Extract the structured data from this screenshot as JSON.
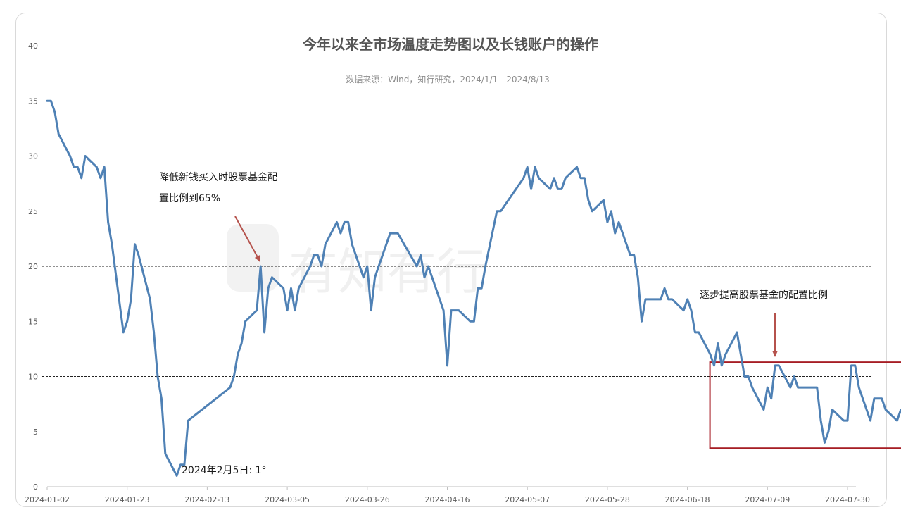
{
  "chart_data": {
    "type": "line",
    "title": "今年以来全市场温度走势图以及长钱账户的操作",
    "subtitle": "数据来源：Wind，知行研究，2024/1/1—2024/8/13",
    "watermark": "有知有行",
    "xlabel": "",
    "ylabel": "",
    "ylim": [
      0,
      40
    ],
    "yticks": [
      0,
      5,
      10,
      15,
      20,
      25,
      30,
      35,
      40
    ],
    "xticks": [
      "2024-01-02",
      "2024-01-23",
      "2024-02-13",
      "2024-03-05",
      "2024-03-26",
      "2024-04-16",
      "2024-05-07",
      "2024-05-28",
      "2024-06-18",
      "2024-07-09",
      "2024-07-30"
    ],
    "reference_lines": [
      10,
      20,
      30
    ],
    "grid": false,
    "line_color": "#4f81b5",
    "series": [
      {
        "points": [
          [
            "2024-01-02",
            35
          ],
          [
            "2024-01-03",
            35
          ],
          [
            "2024-01-04",
            34
          ],
          [
            "2024-01-05",
            32
          ],
          [
            "2024-01-08",
            30
          ],
          [
            "2024-01-09",
            29
          ],
          [
            "2024-01-10",
            29
          ],
          [
            "2024-01-11",
            28
          ],
          [
            "2024-01-12",
            30
          ],
          [
            "2024-01-15",
            29
          ],
          [
            "2024-01-16",
            28
          ],
          [
            "2024-01-17",
            29
          ],
          [
            "2024-01-18",
            24
          ],
          [
            "2024-01-19",
            22
          ],
          [
            "2024-01-22",
            14
          ],
          [
            "2024-01-23",
            15
          ],
          [
            "2024-01-24",
            17
          ],
          [
            "2024-01-25",
            22
          ],
          [
            "2024-01-26",
            21
          ],
          [
            "2024-01-29",
            17
          ],
          [
            "2024-01-30",
            14
          ],
          [
            "2024-01-31",
            10
          ],
          [
            "2024-02-01",
            8
          ],
          [
            "2024-02-02",
            3
          ],
          [
            "2024-02-05",
            1
          ],
          [
            "2024-02-06",
            2
          ],
          [
            "2024-02-07",
            2
          ],
          [
            "2024-02-08",
            6
          ],
          [
            "2024-02-19",
            9
          ],
          [
            "2024-02-20",
            10
          ],
          [
            "2024-02-21",
            12
          ],
          [
            "2024-02-22",
            13
          ],
          [
            "2024-02-23",
            15
          ],
          [
            "2024-02-26",
            16
          ],
          [
            "2024-02-27",
            20
          ],
          [
            "2024-02-28",
            14
          ],
          [
            "2024-02-29",
            18
          ],
          [
            "2024-03-01",
            19
          ],
          [
            "2024-03-04",
            18
          ],
          [
            "2024-03-05",
            16
          ],
          [
            "2024-03-06",
            18
          ],
          [
            "2024-03-07",
            16
          ],
          [
            "2024-03-08",
            18
          ],
          [
            "2024-03-11",
            20
          ],
          [
            "2024-03-12",
            21
          ],
          [
            "2024-03-13",
            21
          ],
          [
            "2024-03-14",
            20
          ],
          [
            "2024-03-15",
            22
          ],
          [
            "2024-03-18",
            24
          ],
          [
            "2024-03-19",
            23
          ],
          [
            "2024-03-20",
            24
          ],
          [
            "2024-03-21",
            24
          ],
          [
            "2024-03-22",
            22
          ],
          [
            "2024-03-25",
            19
          ],
          [
            "2024-03-26",
            20
          ],
          [
            "2024-03-27",
            16
          ],
          [
            "2024-03-28",
            19
          ],
          [
            "2024-03-29",
            20
          ],
          [
            "2024-04-01",
            23
          ],
          [
            "2024-04-02",
            23
          ],
          [
            "2024-04-03",
            23
          ],
          [
            "2024-04-08",
            20
          ],
          [
            "2024-04-09",
            21
          ],
          [
            "2024-04-10",
            19
          ],
          [
            "2024-04-11",
            20
          ],
          [
            "2024-04-15",
            16
          ],
          [
            "2024-04-16",
            11
          ],
          [
            "2024-04-17",
            16
          ],
          [
            "2024-04-18",
            16
          ],
          [
            "2024-04-19",
            16
          ],
          [
            "2024-04-22",
            15
          ],
          [
            "2024-04-23",
            15
          ],
          [
            "2024-04-24",
            18
          ],
          [
            "2024-04-25",
            18
          ],
          [
            "2024-04-26",
            20
          ],
          [
            "2024-04-29",
            25
          ],
          [
            "2024-04-30",
            25
          ],
          [
            "2024-05-06",
            28
          ],
          [
            "2024-05-07",
            29
          ],
          [
            "2024-05-08",
            27
          ],
          [
            "2024-05-09",
            29
          ],
          [
            "2024-05-10",
            28
          ],
          [
            "2024-05-13",
            27
          ],
          [
            "2024-05-14",
            28
          ],
          [
            "2024-05-15",
            27
          ],
          [
            "2024-05-16",
            27
          ],
          [
            "2024-05-17",
            28
          ],
          [
            "2024-05-20",
            29
          ],
          [
            "2024-05-21",
            28
          ],
          [
            "2024-05-22",
            28
          ],
          [
            "2024-05-23",
            26
          ],
          [
            "2024-05-24",
            25
          ],
          [
            "2024-05-27",
            26
          ],
          [
            "2024-05-28",
            24
          ],
          [
            "2024-05-29",
            25
          ],
          [
            "2024-05-30",
            23
          ],
          [
            "2024-05-31",
            24
          ],
          [
            "2024-06-03",
            21
          ],
          [
            "2024-06-04",
            21
          ],
          [
            "2024-06-05",
            19
          ],
          [
            "2024-06-06",
            15
          ],
          [
            "2024-06-07",
            17
          ],
          [
            "2024-06-11",
            17
          ],
          [
            "2024-06-12",
            18
          ],
          [
            "2024-06-13",
            17
          ],
          [
            "2024-06-14",
            17
          ],
          [
            "2024-06-17",
            16
          ],
          [
            "2024-06-18",
            17
          ],
          [
            "2024-06-19",
            16
          ],
          [
            "2024-06-20",
            14
          ],
          [
            "2024-06-21",
            14
          ],
          [
            "2024-06-24",
            12
          ],
          [
            "2024-06-25",
            11
          ],
          [
            "2024-06-26",
            13
          ],
          [
            "2024-06-27",
            11
          ],
          [
            "2024-06-28",
            12
          ],
          [
            "2024-07-01",
            14
          ],
          [
            "2024-07-02",
            12
          ],
          [
            "2024-07-03",
            10
          ],
          [
            "2024-07-04",
            10
          ],
          [
            "2024-07-05",
            9
          ],
          [
            "2024-07-08",
            7
          ],
          [
            "2024-07-09",
            9
          ],
          [
            "2024-07-10",
            8
          ],
          [
            "2024-07-11",
            11
          ],
          [
            "2024-07-12",
            11
          ],
          [
            "2024-07-15",
            9
          ],
          [
            "2024-07-16",
            10
          ],
          [
            "2024-07-17",
            9
          ],
          [
            "2024-07-22",
            9
          ],
          [
            "2024-07-23",
            6
          ],
          [
            "2024-07-24",
            4
          ],
          [
            "2024-07-25",
            5
          ],
          [
            "2024-07-26",
            7
          ],
          [
            "2024-07-29",
            6
          ],
          [
            "2024-07-30",
            6
          ],
          [
            "2024-07-31",
            11
          ],
          [
            "2024-08-01",
            11
          ],
          [
            "2024-08-02",
            9
          ],
          [
            "2024-08-05",
            6
          ],
          [
            "2024-08-06",
            8
          ],
          [
            "2024-08-07",
            8
          ],
          [
            "2024-08-08",
            8
          ],
          [
            "2024-08-09",
            7
          ],
          [
            "2024-08-12",
            6
          ],
          [
            "2024-08-13",
            7
          ]
        ]
      }
    ],
    "annotations": [
      {
        "lines": [
          "降低新钱买入时股票基金配",
          "置比例到65%"
        ],
        "arrow_to": [
          "2024-02-27",
          20
        ]
      },
      {
        "lines": [
          "2024年2月5日: 1°"
        ],
        "near": [
          "2024-02-05",
          1
        ]
      },
      {
        "lines": [
          "逐步提高股票基金的配置比例"
        ],
        "arrow_to": [
          "2024-07-23",
          10
        ]
      }
    ],
    "highlight_box": {
      "x_from": "2024-06-24",
      "x_to": "2024-08-13",
      "y_from": 3.5,
      "y_to": 11.3,
      "color": "#a61d24"
    },
    "arrow_color": "#b5524c"
  }
}
